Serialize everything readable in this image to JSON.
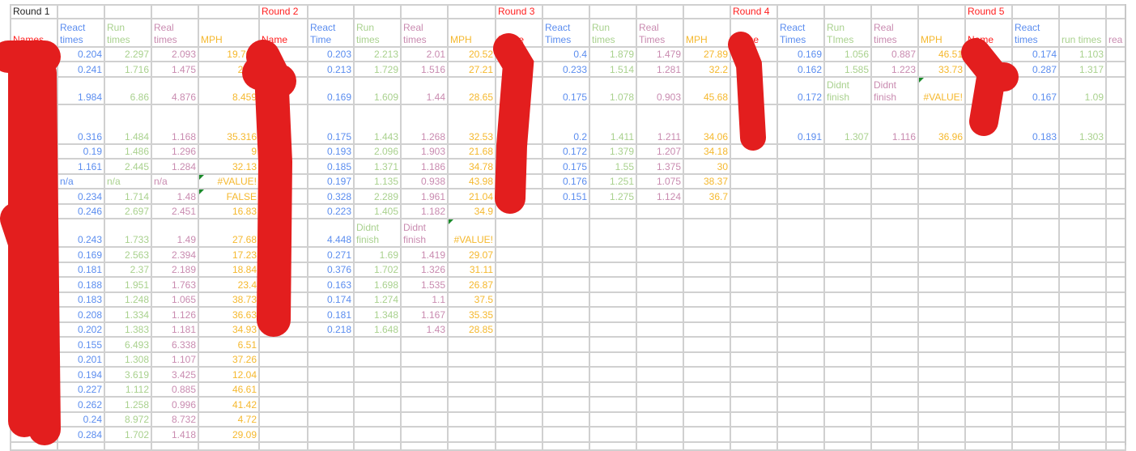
{
  "colors": {
    "name": "#ff2020",
    "react": "#5b8def",
    "run": "#a9d18e",
    "real": "#c98bb0",
    "mph": "#f5b82e",
    "redaction": "#e31e1e"
  },
  "rounds": [
    {
      "title": "Round 1",
      "headers": [
        "Names",
        "React times",
        "Run times",
        "Real times",
        "MPH"
      ],
      "rows": [
        [
          "0.204",
          "2.297",
          "2.093",
          "19.705"
        ],
        [
          "0.241",
          "1.716",
          "1.475",
          "27.9"
        ],
        [
          "1.984",
          "6.86",
          "4.876",
          "8.459"
        ],
        [
          "0.316",
          "1.484",
          "1.168",
          "35.316"
        ],
        [
          "0.19",
          "1.486",
          "1.296",
          "9"
        ],
        [
          "1.161",
          "2.445",
          "1.284",
          "32.13"
        ],
        [
          "n/a",
          "n/a",
          "n/a",
          "#VALUE!"
        ],
        [
          "0.234",
          "1.714",
          "1.48",
          "FALSE"
        ],
        [
          "0.246",
          "2.697",
          "2.451",
          "16.83"
        ],
        [
          "0.243",
          "1.733",
          "1.49",
          "27.68"
        ],
        [
          "0.169",
          "2.563",
          "2.394",
          "17.23"
        ],
        [
          "0.181",
          "2.37",
          "2.189",
          "18.84"
        ],
        [
          "0.188",
          "1.951",
          "1.763",
          "23.4"
        ],
        [
          "0.183",
          "1.248",
          "1.065",
          "38.73"
        ],
        [
          "0.208",
          "1.334",
          "1.126",
          "36.63"
        ],
        [
          "0.202",
          "1.383",
          "1.181",
          "34.93"
        ],
        [
          "0.155",
          "6.493",
          "6.338",
          "6.51"
        ],
        [
          "0.201",
          "1.308",
          "1.107",
          "37.26"
        ],
        [
          "0.194",
          "3.619",
          "3.425",
          "12.04"
        ],
        [
          "0.227",
          "1.112",
          "0.885",
          "46.61"
        ],
        [
          "0.262",
          "1.258",
          "0.996",
          "41.42"
        ],
        [
          "0.24",
          "8.972",
          "8.732",
          "4.72"
        ],
        [
          "0.284",
          "1.702",
          "1.418",
          "29.09"
        ]
      ]
    },
    {
      "title": "Round 2",
      "headers": [
        "Name",
        "React Time",
        "Run times",
        "Real times",
        "MPH"
      ],
      "rows": [
        [
          "0.203",
          "2.213",
          "2.01",
          "20.52"
        ],
        [
          "0.213",
          "1.729",
          "1.516",
          "27.21"
        ],
        [
          "0.169",
          "1.609",
          "1.44",
          "28.65"
        ],
        [
          "0.175",
          "1.443",
          "1.268",
          "32.53"
        ],
        [
          "0.193",
          "2.096",
          "1.903",
          "21.68"
        ],
        [
          "0.185",
          "1.371",
          "1.186",
          "34.78"
        ],
        [
          "0.197",
          "1.135",
          "0.938",
          "43.98"
        ],
        [
          "0.328",
          "2.289",
          "1.961",
          "21.04"
        ],
        [
          "0.223",
          "1.405",
          "1.182",
          "34.9"
        ],
        [
          "4.448",
          "Didnt finish",
          "Didnt finish",
          "#VALUE!"
        ],
        [
          "0.271",
          "1.69",
          "1.419",
          "29.07"
        ],
        [
          "0.376",
          "1.702",
          "1.326",
          "31.11"
        ],
        [
          "0.163",
          "1.698",
          "1.535",
          "26.87"
        ],
        [
          "0.174",
          "1.274",
          "1.1",
          "37.5"
        ],
        [
          "0.181",
          "1.348",
          "1.167",
          "35.35"
        ],
        [
          "0.218",
          "1.648",
          "1.43",
          "28.85"
        ]
      ]
    },
    {
      "title": "Round 3",
      "headers": [
        "Name",
        "React Times",
        "Run times",
        "Real Times",
        "MPH"
      ],
      "rows": [
        [
          "0.4",
          "1.879",
          "1.479",
          "27.89"
        ],
        [
          "0.233",
          "1.514",
          "1.281",
          "32.2"
        ],
        [
          "0.175",
          "1.078",
          "0.903",
          "45.68"
        ],
        [
          "0.2",
          "1.411",
          "1.211",
          "34.06"
        ],
        [
          "0.172",
          "1.379",
          "1.207",
          "34.18"
        ],
        [
          "0.175",
          "1.55",
          "1.375",
          "30"
        ],
        [
          "0.176",
          "1.251",
          "1.075",
          "38.37"
        ],
        [
          "0.151",
          "1.275",
          "1.124",
          "36.7"
        ]
      ]
    },
    {
      "title": "Round 4",
      "headers": [
        "Name",
        "React Times",
        "Run TImes",
        "Real times",
        "MPH"
      ],
      "rows": [
        [
          "0.169",
          "1.056",
          "0.887",
          "46.51"
        ],
        [
          "0.162",
          "1.585",
          "1.223",
          "33.73"
        ],
        [
          "0.172",
          "Didnt finish",
          "Didnt finish",
          "#VALUE!"
        ],
        [
          "0.191",
          "1.307",
          "1.116",
          "36.96"
        ]
      ]
    },
    {
      "title": "Round 5",
      "headers": [
        "Name",
        "React times",
        "run times",
        "rea"
      ],
      "rows": [
        [
          "0.174",
          "1.103"
        ],
        [
          "0.287",
          "1.317"
        ],
        [
          "0.167",
          "1.09"
        ],
        [
          "0.183",
          "1.303"
        ]
      ]
    }
  ]
}
